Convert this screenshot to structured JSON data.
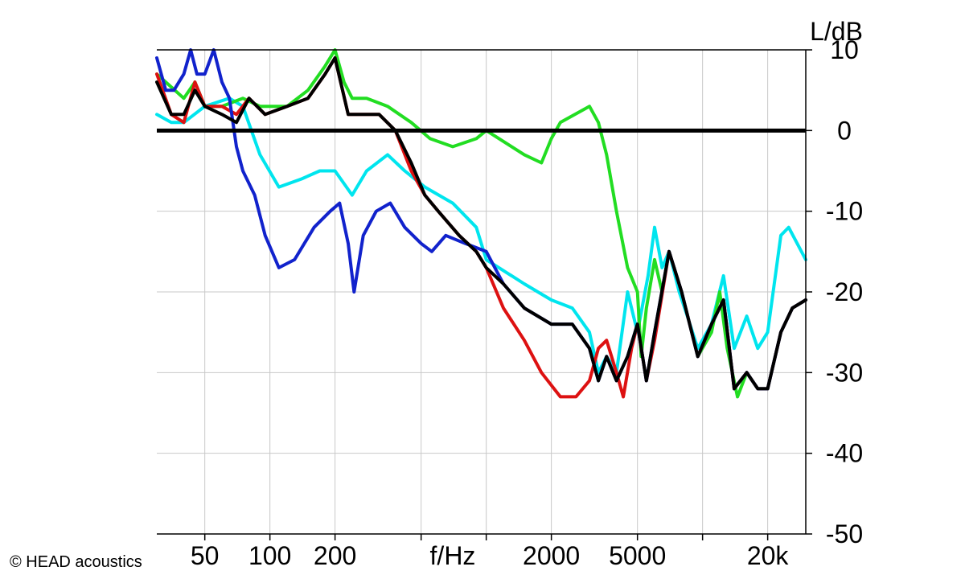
{
  "chart_data": {
    "type": "line",
    "ylabel": "L/dB",
    "xlabel": "f/Hz",
    "x_scale": "log",
    "xlim": [
      30,
      30000
    ],
    "ylim": [
      -50,
      10
    ],
    "x_ticks": [
      {
        "label": "50",
        "value": 50
      },
      {
        "label": "100",
        "value": 100
      },
      {
        "label": "200",
        "value": 200
      },
      {
        "label": "f/Hz",
        "value": 700
      },
      {
        "label": "2000",
        "value": 2000
      },
      {
        "label": "5000",
        "value": 5000
      },
      {
        "label": "20k",
        "value": 20000
      }
    ],
    "x_gridlines": [
      50,
      100,
      200,
      500,
      1000,
      2000,
      5000,
      10000,
      20000
    ],
    "y_ticks": [
      10,
      0,
      -10,
      -20,
      -30,
      -40,
      -50
    ],
    "grid": true,
    "reference_line": 0,
    "series": [
      {
        "color": "#00e5ee",
        "points": [
          [
            30,
            2
          ],
          [
            35,
            1
          ],
          [
            40,
            1
          ],
          [
            50,
            3
          ],
          [
            65,
            4
          ],
          [
            75,
            3
          ],
          [
            90,
            -3
          ],
          [
            110,
            -7
          ],
          [
            140,
            -6
          ],
          [
            170,
            -5
          ],
          [
            200,
            -5
          ],
          [
            240,
            -8
          ],
          [
            280,
            -5
          ],
          [
            350,
            -3
          ],
          [
            420,
            -5
          ],
          [
            520,
            -7
          ],
          [
            700,
            -9
          ],
          [
            900,
            -12
          ],
          [
            1000,
            -16
          ],
          [
            1500,
            -19
          ],
          [
            2000,
            -21
          ],
          [
            2500,
            -22
          ],
          [
            3000,
            -25
          ],
          [
            3300,
            -30
          ],
          [
            3600,
            -28
          ],
          [
            4000,
            -30
          ],
          [
            4500,
            -20
          ],
          [
            5000,
            -25
          ],
          [
            5600,
            -18
          ],
          [
            6000,
            -12
          ],
          [
            6500,
            -17
          ],
          [
            7000,
            -15
          ],
          [
            7800,
            -20
          ],
          [
            8500,
            -23
          ],
          [
            9500,
            -27
          ],
          [
            11000,
            -24
          ],
          [
            12500,
            -18
          ],
          [
            14000,
            -27
          ],
          [
            16000,
            -23
          ],
          [
            18000,
            -27
          ],
          [
            20000,
            -25
          ],
          [
            23000,
            -13
          ],
          [
            25000,
            -12
          ],
          [
            30000,
            -16
          ]
        ]
      },
      {
        "color": "#22dd22",
        "points": [
          [
            30,
            7
          ],
          [
            40,
            4
          ],
          [
            45,
            6
          ],
          [
            50,
            3
          ],
          [
            60,
            3
          ],
          [
            75,
            4
          ],
          [
            90,
            3
          ],
          [
            120,
            3
          ],
          [
            150,
            5
          ],
          [
            180,
            8
          ],
          [
            200,
            10
          ],
          [
            220,
            6
          ],
          [
            240,
            4
          ],
          [
            280,
            4
          ],
          [
            350,
            3
          ],
          [
            450,
            1
          ],
          [
            550,
            -1
          ],
          [
            700,
            -2
          ],
          [
            900,
            -1
          ],
          [
            1000,
            0
          ],
          [
            1500,
            -3
          ],
          [
            1800,
            -4
          ],
          [
            2000,
            -1
          ],
          [
            2200,
            1
          ],
          [
            3000,
            3
          ],
          [
            3300,
            1
          ],
          [
            3600,
            -3
          ],
          [
            4000,
            -10
          ],
          [
            4500,
            -17
          ],
          [
            5000,
            -20
          ],
          [
            5200,
            -28
          ],
          [
            5500,
            -22
          ],
          [
            6000,
            -16
          ],
          [
            6500,
            -20
          ],
          [
            7000,
            -15
          ],
          [
            8000,
            -20
          ],
          [
            9500,
            -28
          ],
          [
            11000,
            -25
          ],
          [
            12000,
            -20
          ],
          [
            13000,
            -27
          ],
          [
            14500,
            -33
          ],
          [
            16000,
            -30
          ],
          [
            18000,
            -32
          ],
          [
            20000,
            -32
          ],
          [
            23000,
            -25
          ],
          [
            26000,
            -22
          ],
          [
            30000,
            -21
          ]
        ]
      },
      {
        "color": "#dd1111",
        "points": [
          [
            30,
            7
          ],
          [
            35,
            2
          ],
          [
            40,
            1
          ],
          [
            45,
            6
          ],
          [
            50,
            3
          ],
          [
            60,
            3
          ],
          [
            70,
            2
          ],
          [
            80,
            4
          ],
          [
            95,
            2
          ],
          [
            120,
            3
          ],
          [
            150,
            4
          ],
          [
            180,
            7
          ],
          [
            200,
            9
          ],
          [
            230,
            2
          ],
          [
            260,
            2
          ],
          [
            320,
            2
          ],
          [
            380,
            0
          ],
          [
            450,
            -5
          ],
          [
            520,
            -8
          ],
          [
            600,
            -10
          ],
          [
            750,
            -13
          ],
          [
            900,
            -15
          ],
          [
            1000,
            -17
          ],
          [
            1200,
            -22
          ],
          [
            1500,
            -26
          ],
          [
            1800,
            -30
          ],
          [
            2200,
            -33
          ],
          [
            2600,
            -33
          ],
          [
            3000,
            -31
          ],
          [
            3300,
            -27
          ],
          [
            3600,
            -26
          ],
          [
            4000,
            -30
          ],
          [
            4300,
            -33
          ],
          [
            4700,
            -27
          ],
          [
            5000,
            -24
          ],
          [
            5500,
            -31
          ],
          [
            6000,
            -26
          ],
          [
            7000,
            -15
          ],
          [
            8000,
            -20
          ],
          [
            9500,
            -28
          ],
          [
            11000,
            -24
          ],
          [
            12500,
            -21
          ],
          [
            14000,
            -32
          ],
          [
            16000,
            -30
          ],
          [
            18000,
            -32
          ],
          [
            20000,
            -32
          ],
          [
            23000,
            -25
          ],
          [
            26000,
            -22
          ],
          [
            30000,
            -21
          ]
        ]
      },
      {
        "color": "#1122cc",
        "points": [
          [
            30,
            9
          ],
          [
            33,
            5
          ],
          [
            36,
            5
          ],
          [
            40,
            7
          ],
          [
            43,
            10
          ],
          [
            46,
            7
          ],
          [
            50,
            7
          ],
          [
            55,
            10
          ],
          [
            60,
            6
          ],
          [
            65,
            4
          ],
          [
            70,
            -2
          ],
          [
            75,
            -5
          ],
          [
            85,
            -8
          ],
          [
            95,
            -13
          ],
          [
            110,
            -17
          ],
          [
            130,
            -16
          ],
          [
            160,
            -12
          ],
          [
            190,
            -10
          ],
          [
            210,
            -9
          ],
          [
            230,
            -14
          ],
          [
            245,
            -20
          ],
          [
            270,
            -13
          ],
          [
            310,
            -10
          ],
          [
            360,
            -9
          ],
          [
            420,
            -12
          ],
          [
            500,
            -14
          ],
          [
            560,
            -15
          ],
          [
            650,
            -13
          ],
          [
            800,
            -14
          ],
          [
            1000,
            -15
          ],
          [
            1200,
            -19
          ],
          [
            1500,
            -22
          ],
          [
            2000,
            -24
          ],
          [
            2500,
            -24
          ],
          [
            3000,
            -27
          ],
          [
            3300,
            -31
          ],
          [
            3600,
            -28
          ],
          [
            4000,
            -31
          ],
          [
            4500,
            -28
          ],
          [
            5000,
            -24
          ],
          [
            5500,
            -31
          ],
          [
            6000,
            -25
          ],
          [
            7000,
            -15
          ],
          [
            8000,
            -20
          ],
          [
            9500,
            -28
          ],
          [
            11000,
            -24
          ],
          [
            12500,
            -21
          ],
          [
            14000,
            -32
          ],
          [
            16000,
            -30
          ],
          [
            18000,
            -32
          ],
          [
            20000,
            -32
          ],
          [
            23000,
            -25
          ],
          [
            26000,
            -22
          ],
          [
            30000,
            -21
          ]
        ]
      },
      {
        "color": "#000000",
        "points": [
          [
            30,
            6
          ],
          [
            35,
            2
          ],
          [
            40,
            2
          ],
          [
            45,
            5
          ],
          [
            50,
            3
          ],
          [
            60,
            2
          ],
          [
            70,
            1
          ],
          [
            80,
            4
          ],
          [
            95,
            2
          ],
          [
            120,
            3
          ],
          [
            150,
            4
          ],
          [
            180,
            7
          ],
          [
            200,
            9
          ],
          [
            230,
            2
          ],
          [
            260,
            2
          ],
          [
            320,
            2
          ],
          [
            380,
            0
          ],
          [
            450,
            -4
          ],
          [
            520,
            -8
          ],
          [
            600,
            -10
          ],
          [
            750,
            -13
          ],
          [
            900,
            -15
          ],
          [
            1000,
            -17
          ],
          [
            1200,
            -19
          ],
          [
            1500,
            -22
          ],
          [
            2000,
            -24
          ],
          [
            2500,
            -24
          ],
          [
            3000,
            -27
          ],
          [
            3300,
            -31
          ],
          [
            3600,
            -28
          ],
          [
            4000,
            -31
          ],
          [
            4500,
            -28
          ],
          [
            5000,
            -24
          ],
          [
            5500,
            -31
          ],
          [
            6000,
            -25
          ],
          [
            7000,
            -15
          ],
          [
            8000,
            -20
          ],
          [
            9500,
            -28
          ],
          [
            11000,
            -24
          ],
          [
            12500,
            -21
          ],
          [
            14000,
            -32
          ],
          [
            16000,
            -30
          ],
          [
            18000,
            -32
          ],
          [
            20000,
            -32
          ],
          [
            23000,
            -25
          ],
          [
            26000,
            -22
          ],
          [
            30000,
            -21
          ]
        ]
      }
    ]
  },
  "footer": {
    "copyright": "© HEAD acoustics"
  }
}
